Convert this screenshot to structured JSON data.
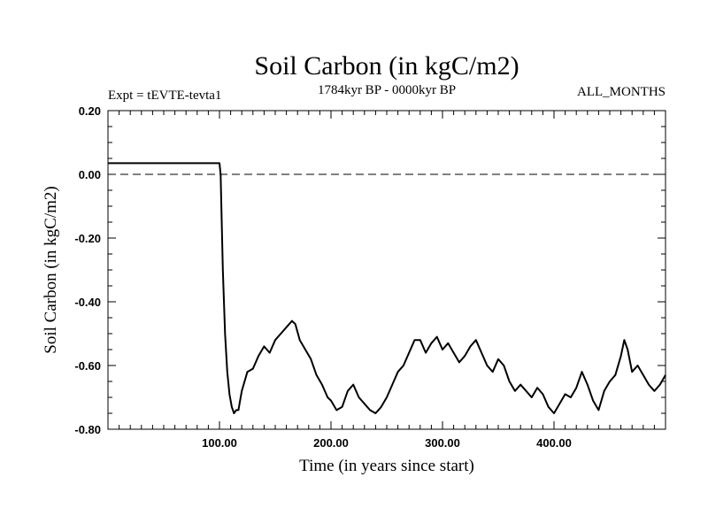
{
  "chart_data": {
    "type": "line",
    "title": "Soil Carbon (in kgC/m2)",
    "subtitle": "1784kyr BP - 0000kyr BP",
    "expt_label": "Expt = tEVTE-tevta1",
    "months_label": "ALL_MONTHS",
    "xlabel": "Time (in years since start)",
    "ylabel": "Soil Carbon (in kgC/m2)",
    "xlim": [
      0,
      500
    ],
    "ylim": [
      -0.8,
      0.2
    ],
    "x_ticks": [
      {
        "value": 100,
        "label": "100.00"
      },
      {
        "value": 200,
        "label": "200.00"
      },
      {
        "value": 300,
        "label": "300.00"
      },
      {
        "value": 400,
        "label": "400.00"
      }
    ],
    "y_ticks": [
      {
        "value": 0.2,
        "label": "0.20"
      },
      {
        "value": 0.0,
        "label": "0.00"
      },
      {
        "value": -0.2,
        "label": "-0.20"
      },
      {
        "value": -0.4,
        "label": "-0.40"
      },
      {
        "value": -0.6,
        "label": "-0.60"
      },
      {
        "value": -0.8,
        "label": "-0.80"
      }
    ],
    "reference_line": {
      "y": 0.0,
      "style": "dashed"
    },
    "series": [
      {
        "name": "Soil Carbon",
        "x": [
          0,
          100,
          101,
          103,
          105,
          107,
          109,
          111,
          113,
          115,
          117,
          120,
          125,
          130,
          135,
          140,
          145,
          150,
          155,
          160,
          165,
          168,
          172,
          177,
          182,
          187,
          192,
          197,
          200,
          205,
          210,
          215,
          220,
          225,
          230,
          235,
          240,
          245,
          250,
          255,
          260,
          265,
          270,
          275,
          280,
          285,
          290,
          295,
          300,
          305,
          310,
          315,
          320,
          325,
          330,
          335,
          340,
          345,
          350,
          355,
          360,
          365,
          370,
          375,
          380,
          385,
          390,
          395,
          400,
          405,
          410,
          415,
          420,
          425,
          430,
          435,
          440,
          445,
          450,
          455,
          460,
          463,
          466,
          470,
          475,
          480,
          485,
          490,
          495,
          500
        ],
        "y": [
          0.035,
          0.035,
          0.0,
          -0.3,
          -0.5,
          -0.62,
          -0.69,
          -0.73,
          -0.75,
          -0.74,
          -0.74,
          -0.68,
          -0.62,
          -0.61,
          -0.57,
          -0.54,
          -0.56,
          -0.52,
          -0.5,
          -0.48,
          -0.46,
          -0.47,
          -0.52,
          -0.55,
          -0.58,
          -0.63,
          -0.66,
          -0.7,
          -0.71,
          -0.74,
          -0.73,
          -0.68,
          -0.66,
          -0.7,
          -0.72,
          -0.74,
          -0.75,
          -0.73,
          -0.7,
          -0.66,
          -0.62,
          -0.6,
          -0.56,
          -0.52,
          -0.52,
          -0.56,
          -0.53,
          -0.51,
          -0.55,
          -0.53,
          -0.56,
          -0.59,
          -0.57,
          -0.54,
          -0.52,
          -0.56,
          -0.6,
          -0.62,
          -0.58,
          -0.6,
          -0.65,
          -0.68,
          -0.66,
          -0.68,
          -0.7,
          -0.67,
          -0.69,
          -0.73,
          -0.75,
          -0.72,
          -0.69,
          -0.7,
          -0.67,
          -0.62,
          -0.66,
          -0.71,
          -0.74,
          -0.68,
          -0.65,
          -0.63,
          -0.57,
          -0.52,
          -0.55,
          -0.62,
          -0.6,
          -0.63,
          -0.66,
          -0.68,
          -0.66,
          -0.63
        ]
      }
    ]
  }
}
